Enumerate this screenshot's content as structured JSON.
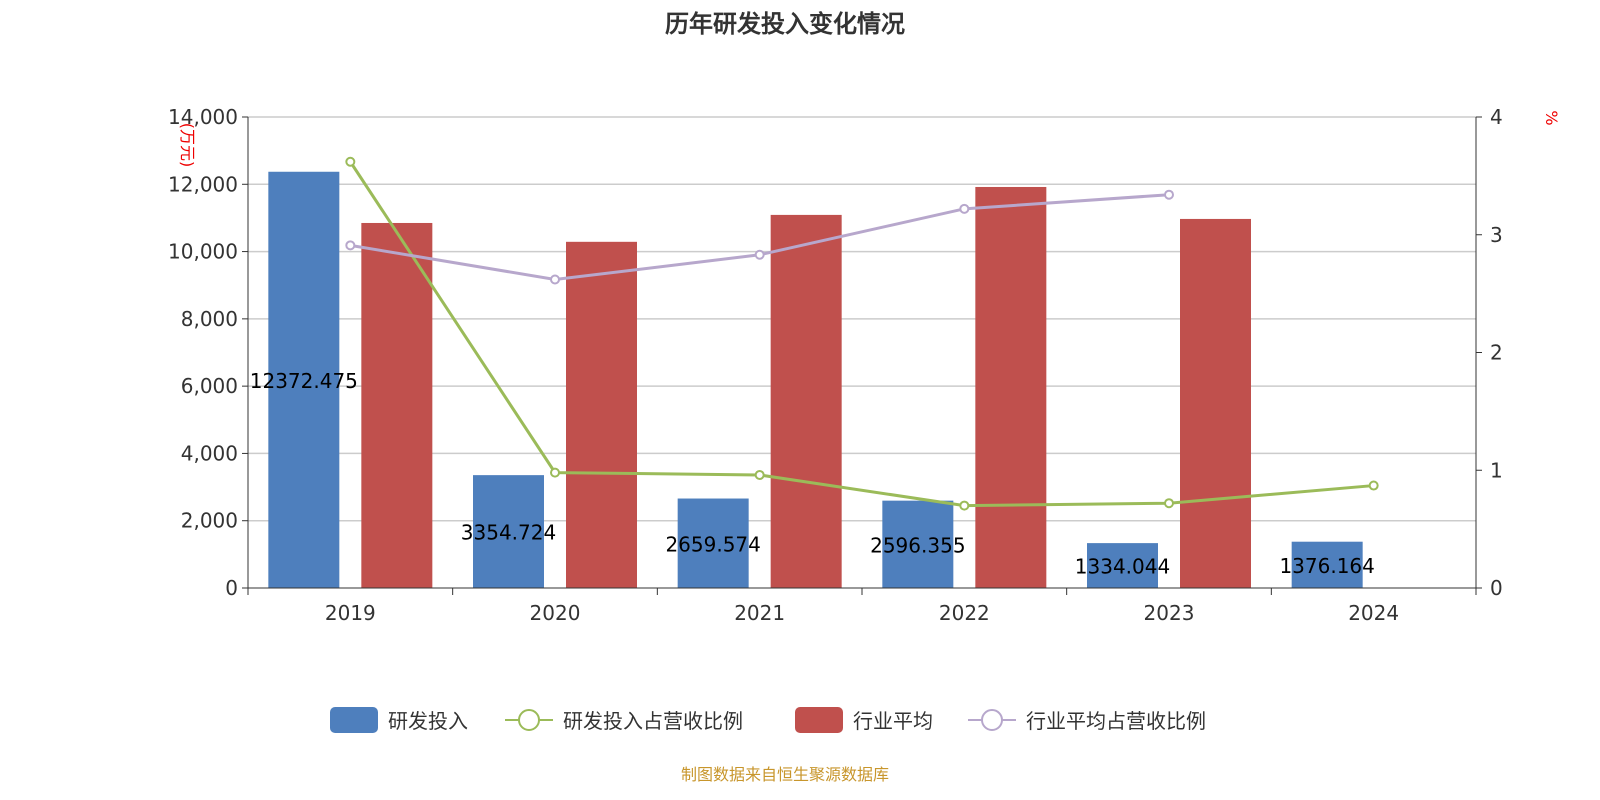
{
  "chart_data": {
    "type": "bar",
    "title": "历年研发投入变化情况",
    "categories": [
      "2019",
      "2020",
      "2021",
      "2022",
      "2023",
      "2024"
    ],
    "y_left": {
      "label": "(万元)",
      "ylim": [
        0,
        14000
      ],
      "ticks": [
        "0",
        "2,000",
        "4,000",
        "6,000",
        "8,000",
        "10,000",
        "12,000",
        "14,000"
      ]
    },
    "y_right": {
      "label": "%",
      "ylim": [
        0,
        4
      ],
      "ticks": [
        "0",
        "1",
        "2",
        "3",
        "4"
      ]
    },
    "grid": true,
    "legend_position": "bottom",
    "series": [
      {
        "name": "研发投入",
        "type": "bar",
        "axis": "left",
        "color": "#4e7fbd",
        "values": [
          12372.475,
          3354.724,
          2659.574,
          2596.355,
          1334.044,
          1376.164
        ],
        "labels": [
          "12372.475",
          "3354.724",
          "2659.574",
          "2596.355",
          "1334.044",
          "1376.164"
        ]
      },
      {
        "name": "研发投入占营收比例",
        "type": "line",
        "axis": "right",
        "color": "#9bbb59",
        "values": [
          3.62,
          0.98,
          0.96,
          0.7,
          0.72,
          0.87
        ]
      },
      {
        "name": "行业平均",
        "type": "bar",
        "axis": "left",
        "color": "#c0504d",
        "values": [
          10850,
          10290,
          11090,
          11920,
          10970,
          null
        ]
      },
      {
        "name": "行业平均占营收比例",
        "type": "line",
        "axis": "right",
        "color": "#b7a7cc",
        "values": [
          2.91,
          2.62,
          2.83,
          3.22,
          3.34,
          null
        ]
      }
    ],
    "source": "制图数据来自恒生聚源数据库"
  }
}
